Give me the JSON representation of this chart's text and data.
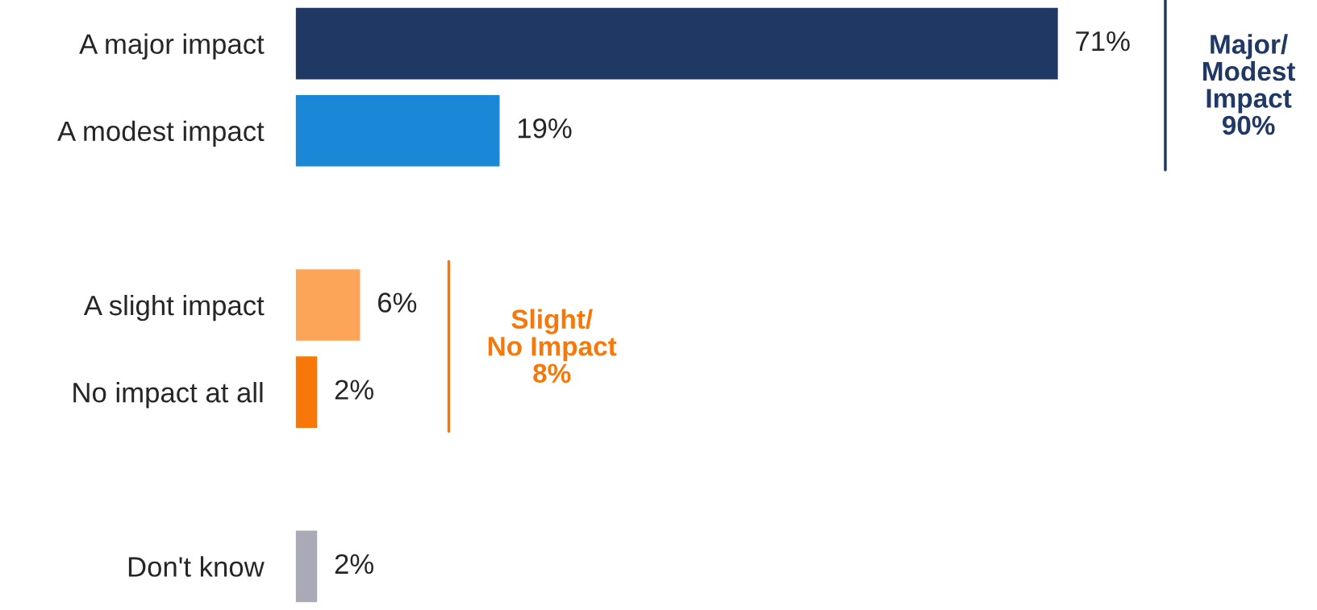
{
  "chart_data": {
    "type": "bar",
    "orientation": "horizontal",
    "value_labels": [
      "71%",
      "19%",
      null,
      "6%",
      "2%",
      null,
      "2%"
    ],
    "categories": [
      "A major impact",
      "A modest impact",
      null,
      "A slight impact",
      "No impact at all",
      null,
      "Don't know"
    ],
    "values": [
      71,
      19,
      null,
      6,
      2,
      null,
      2
    ],
    "colors": [
      "#1f3864",
      "#1a88d6",
      "#ffffff",
      "#fca458",
      "#f77808",
      "#ffffff",
      "#a9a9b8"
    ],
    "annotations": [
      "Major/\nModest\nImpact\n90%",
      "Slight/\nNo Impact\n8%"
    ],
    "grid": false,
    "legend": false
  }
}
